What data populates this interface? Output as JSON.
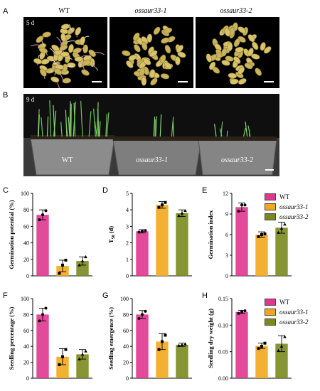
{
  "figure": {
    "panel_labels": [
      "A",
      "B",
      "C",
      "D",
      "E",
      "F",
      "G",
      "H"
    ],
    "genotypes": [
      "WT",
      "ossaur33-1",
      "ossaur33-2"
    ],
    "colors": {
      "WT": "#e0368e",
      "ossaur33-1": "#f2a81e",
      "ossaur33-2": "#7a8a1e"
    },
    "panelA": {
      "day_label": "5 d"
    },
    "panelB": {
      "day_label": "9 d"
    },
    "legend_top": [
      "WT",
      "ossaur33-1",
      "ossaur33-2"
    ],
    "legend_bottom": [
      "WT",
      "ossaur33-1",
      "ossaur33-2"
    ]
  },
  "chart_data": [
    {
      "panel": "C",
      "type": "bar",
      "categories": [
        "WT",
        "ossaur33-1",
        "ossaur33-2"
      ],
      "values": [
        74,
        12,
        18
      ],
      "errors": [
        6,
        7,
        5
      ],
      "points": [
        [
          68,
          74,
          79
        ],
        [
          3,
          13,
          19
        ],
        [
          13,
          18,
          23
        ]
      ],
      "ylabel": "Germination potential (%)",
      "ylim": [
        0,
        100
      ],
      "yticks": [
        0,
        20,
        40,
        60,
        80,
        100
      ]
    },
    {
      "panel": "D",
      "type": "bar",
      "categories": [
        "WT",
        "ossaur33-1",
        "ossaur33-2"
      ],
      "values": [
        2.7,
        4.3,
        3.8
      ],
      "errors": [
        0.1,
        0.2,
        0.2
      ],
      "points": [
        [
          2.65,
          2.7,
          2.75
        ],
        [
          4.15,
          4.3,
          4.45
        ],
        [
          3.65,
          3.8,
          3.95
        ]
      ],
      "ylabel": "T50 (d)",
      "ylim": [
        0,
        5
      ],
      "yticks": [
        0,
        1,
        2,
        3,
        4,
        5
      ]
    },
    {
      "panel": "E",
      "type": "bar",
      "categories": [
        "WT",
        "ossaur33-1",
        "ossaur33-2"
      ],
      "values": [
        10,
        6,
        7
      ],
      "errors": [
        0.6,
        0.4,
        0.8
      ],
      "points": [
        [
          9.4,
          10.3,
          10.3
        ],
        [
          5.7,
          6.0,
          6.1
        ],
        [
          6.3,
          6.9,
          7.5
        ]
      ],
      "ylabel": "Germination index",
      "ylim": [
        0,
        12
      ],
      "yticks": [
        0,
        3,
        6,
        9,
        12
      ]
    },
    {
      "panel": "F",
      "type": "bar",
      "categories": [
        "WT",
        "ossaur33-1",
        "ossaur33-2"
      ],
      "values": [
        80,
        27,
        30
      ],
      "errors": [
        8,
        10,
        6
      ],
      "points": [
        [
          72,
          80,
          88
        ],
        [
          17,
          27,
          36
        ],
        [
          24,
          30,
          34
        ]
      ],
      "ylabel": "Seedling percentage (%)",
      "ylim": [
        0,
        100
      ],
      "yticks": [
        0,
        20,
        40,
        60,
        80,
        100
      ]
    },
    {
      "panel": "G",
      "type": "bar",
      "categories": [
        "WT",
        "ossaur33-1",
        "ossaur33-2"
      ],
      "values": [
        80,
        46,
        42
      ],
      "errors": [
        5,
        10,
        2
      ],
      "points": [
        [
          75,
          80,
          84
        ],
        [
          36,
          46,
          54
        ],
        [
          41,
          42,
          43
        ]
      ],
      "ylabel": "Seedling emergence (%)",
      "ylim": [
        0,
        100
      ],
      "yticks": [
        0,
        20,
        40,
        60,
        80,
        100
      ]
    },
    {
      "panel": "H",
      "type": "bar",
      "categories": [
        "WT",
        "ossaur33-1",
        "ossaur33-2"
      ],
      "values": [
        0.125,
        0.061,
        0.065
      ],
      "errors": [
        0.003,
        0.005,
        0.015
      ],
      "points": [
        [
          0.122,
          0.125,
          0.127
        ],
        [
          0.056,
          0.06,
          0.066
        ],
        [
          0.052,
          0.06,
          0.078
        ]
      ],
      "ylabel": "Seedling dry weight (g)",
      "ylim": [
        0,
        0.15
      ],
      "yticks": [
        0.0,
        0.05,
        0.1,
        0.15
      ]
    }
  ]
}
